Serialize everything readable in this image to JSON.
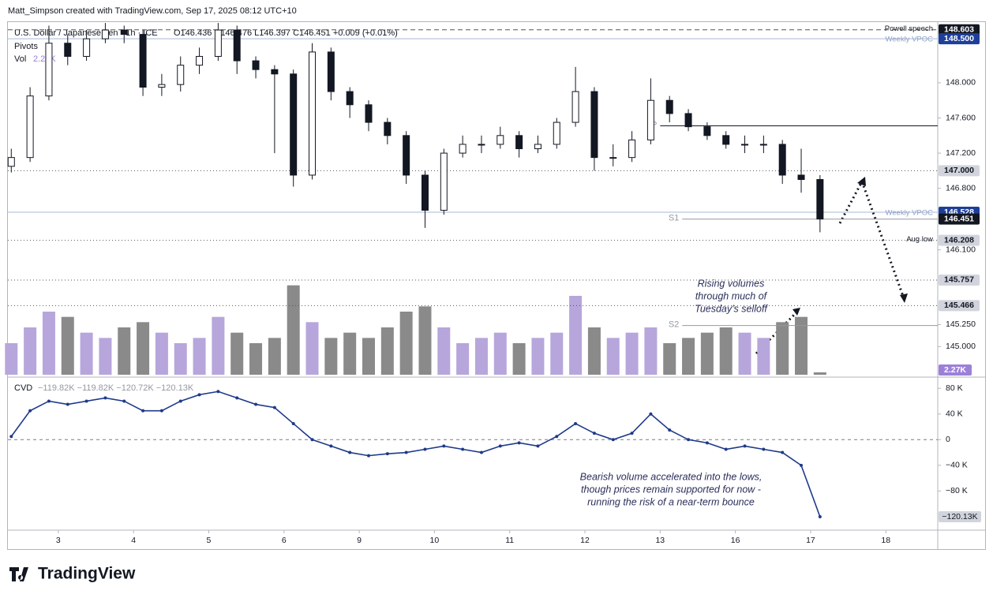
{
  "header": "Matt_Simpson created with TradingView.com, Sep 17, 2025 08:12 UTC+10",
  "logo": "TradingView",
  "chart_data": {
    "type": "candlestick",
    "symbol": "U.S. Dollar / Japanese Yen · 1h · ICE",
    "ohlc_legend": "O146.436 H146.476 L146.397 C146.451 +0.009 (+0.01%)",
    "indicator": "Pivots",
    "xlim": [
      -0.67,
      11.69
    ],
    "xticks": [
      {
        "value": 0,
        "label": "3"
      },
      {
        "value": 1,
        "label": "4"
      },
      {
        "value": 2,
        "label": "5"
      },
      {
        "value": 3,
        "label": "6"
      },
      {
        "value": 4,
        "label": "9"
      },
      {
        "value": 5,
        "label": "10"
      },
      {
        "value": 6,
        "label": "11"
      },
      {
        "value": 7,
        "label": "12"
      },
      {
        "value": 8,
        "label": "13"
      },
      {
        "value": 9,
        "label": "16"
      },
      {
        "value": 10,
        "label": "17"
      },
      {
        "value": 11,
        "label": "18"
      }
    ],
    "ylim": [
      144.68,
      148.69
    ],
    "yticks": [
      {
        "value": 148,
        "label": "148.000"
      },
      {
        "value": 147.6,
        "label": "147.600"
      },
      {
        "value": 147.2,
        "label": "147.200"
      },
      {
        "value": 146.8,
        "label": "146.800"
      },
      {
        "value": 146.1,
        "label": "146.100"
      },
      {
        "value": 145.25,
        "label": "145.250"
      },
      {
        "value": 145,
        "label": "145.000"
      }
    ],
    "x": [
      -0.625,
      -0.375,
      -0.125,
      0.125,
      0.375,
      0.625,
      0.875,
      1.125,
      1.375,
      1.625,
      1.875,
      2.125,
      2.375,
      2.625,
      2.875,
      3.125,
      3.375,
      3.625,
      3.875,
      4.125,
      4.375,
      4.625,
      4.875,
      5.125,
      5.375,
      5.625,
      5.875,
      6.125,
      6.375,
      6.625,
      6.875,
      7.125,
      7.375,
      7.625,
      7.875,
      8.125,
      8.375,
      8.625,
      8.875,
      9.125,
      9.375,
      9.625,
      9.875,
      10.125
    ],
    "open": [
      147.05,
      147.15,
      147.85,
      148.45,
      148.3,
      148.5,
      148.6,
      148.55,
      147.95,
      147.98,
      148.2,
      148.3,
      148.6,
      148.25,
      148.15,
      148.1,
      146.95,
      148.35,
      147.9,
      147.75,
      147.55,
      147.4,
      146.95,
      146.55,
      147.2,
      147.3,
      147.3,
      147.4,
      147.25,
      147.3,
      147.55,
      147.9,
      147.15,
      147.15,
      147.35,
      147.8,
      147.65,
      147.5,
      147.4,
      147.3,
      147.3,
      147.3,
      146.95,
      146.9
    ],
    "high": [
      147.25,
      147.95,
      148.65,
      148.55,
      148.6,
      148.68,
      148.65,
      148.6,
      148.1,
      148.3,
      148.4,
      148.68,
      148.65,
      148.3,
      148.2,
      148.15,
      148.45,
      148.4,
      147.95,
      147.8,
      147.6,
      147.45,
      147.0,
      147.25,
      147.4,
      147.4,
      147.5,
      147.45,
      147.4,
      147.6,
      148.18,
      147.95,
      147.3,
      147.45,
      148.05,
      147.85,
      147.7,
      147.55,
      147.45,
      147.4,
      147.4,
      147.35,
      147.25,
      146.95
    ],
    "low": [
      146.98,
      147.1,
      147.8,
      148.2,
      148.25,
      148.45,
      148.45,
      147.85,
      147.85,
      147.9,
      148.1,
      148.25,
      148.1,
      148.05,
      147.2,
      146.82,
      146.9,
      147.8,
      147.6,
      147.45,
      147.3,
      146.85,
      146.35,
      146.5,
      147.15,
      147.2,
      147.25,
      147.15,
      147.2,
      147.25,
      147.5,
      147.0,
      147.05,
      147.1,
      147.3,
      147.55,
      147.45,
      147.35,
      147.25,
      147.2,
      147.2,
      146.85,
      146.75,
      146.3
    ],
    "close": [
      147.15,
      147.85,
      148.45,
      148.3,
      148.5,
      148.6,
      148.55,
      147.95,
      147.98,
      148.2,
      148.3,
      148.6,
      148.25,
      148.15,
      148.1,
      146.95,
      148.35,
      147.9,
      147.75,
      147.55,
      147.4,
      146.95,
      146.55,
      147.2,
      147.3,
      147.3,
      147.4,
      147.25,
      147.3,
      147.55,
      147.9,
      147.15,
      147.15,
      147.35,
      147.8,
      147.65,
      147.5,
      147.4,
      147.3,
      147.3,
      147.3,
      146.95,
      146.9,
      146.451
    ],
    "up_color": "#ffffff",
    "down_color": "#131722",
    "levels": [
      {
        "value": 148.603,
        "label": "148.603",
        "name": "Powell speech",
        "color": "#131722",
        "style": "dashed"
      },
      {
        "value": 148.5,
        "label": "148.500",
        "name": "Weekly VPOC",
        "color": "#1e3f99",
        "style": "solid"
      },
      {
        "value": 147,
        "label": "147.000",
        "color": "#d1d4dc",
        "style": "dotted"
      },
      {
        "value": 146.528,
        "label": "146.528",
        "name": "Weekly VPOC",
        "color": "#1e3f99",
        "style": "solid"
      },
      {
        "value": 146.451,
        "label": "146.451",
        "color": "#131722",
        "style": "none"
      },
      {
        "value": 146.208,
        "label": "146.208",
        "name": "Aug low",
        "color": "#d1d4dc",
        "style": "dotted"
      },
      {
        "value": 145.757,
        "label": "145.757",
        "color": "#d1d4dc",
        "style": "dotted"
      },
      {
        "value": 145.466,
        "label": "145.466",
        "color": "#d1d4dc",
        "style": "dotted"
      }
    ],
    "pivots": [
      {
        "name": "P",
        "value": 147.51
      },
      {
        "name": "S1",
        "value": 146.45
      },
      {
        "name": "S2",
        "value": 145.24
      }
    ],
    "volume": {
      "name": "Vol",
      "last_label": "2.27K",
      "ylim": [
        0,
        90
      ],
      "up_color": "#b7a6db",
      "down_color": "#8a8a8a",
      "values": [
        30,
        45,
        60,
        55,
        40,
        35,
        45,
        50,
        40,
        30,
        35,
        55,
        40,
        30,
        35,
        85,
        50,
        35,
        40,
        35,
        45,
        60,
        65,
        45,
        30,
        35,
        40,
        30,
        35,
        40,
        75,
        45,
        35,
        40,
        45,
        30,
        35,
        40,
        45,
        40,
        35,
        50,
        55,
        2.27
      ]
    },
    "cvd": {
      "name": "CVD",
      "legend": "−119.82K −119.82K −120.72K −120.13K",
      "last_label": "−120.13K",
      "color": "#1e3a8a",
      "ylim": [
        -141,
        95
      ],
      "yticks": [
        {
          "value": 80,
          "label": "80 K"
        },
        {
          "value": 40,
          "label": "40 K"
        },
        0,
        {
          "value": -40,
          "label": "−40 K"
        },
        {
          "value": -80,
          "label": "−80 K"
        }
      ],
      "values": [
        5,
        45,
        60,
        55,
        60,
        65,
        60,
        45,
        45,
        60,
        70,
        75,
        65,
        55,
        50,
        25,
        0,
        -10,
        -20,
        -25,
        -22,
        -20,
        -15,
        -10,
        -15,
        -20,
        -10,
        -5,
        -10,
        5,
        25,
        10,
        0,
        10,
        40,
        15,
        0,
        -5,
        -15,
        -10,
        -15,
        -20,
        -40,
        -120.13
      ]
    },
    "annotations": [
      {
        "lines": [
          "Rising volumes",
          "through much of",
          "Tuesday's selloff"
        ]
      },
      {
        "lines": [
          "Bearish volume accelerated into the lows,",
          "though prices remain supported for now -",
          "running the risk of a near-term bounce"
        ]
      }
    ]
  }
}
